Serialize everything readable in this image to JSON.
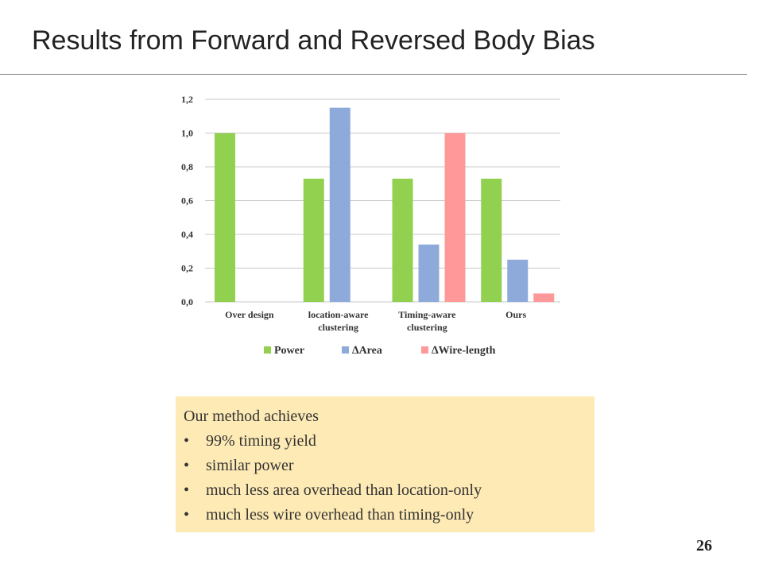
{
  "slide": {
    "title": "Results from Forward and Reversed Body Bias",
    "page_number": "26"
  },
  "chart_data": {
    "type": "bar",
    "categories": [
      [
        "Over design"
      ],
      [
        "location-aware",
        "clustering"
      ],
      [
        "Timing-aware",
        "clustering"
      ],
      [
        "Ours"
      ]
    ],
    "series": [
      {
        "name": "Power",
        "color": "#92d050",
        "values": [
          1.0,
          0.73,
          0.73,
          0.73
        ]
      },
      {
        "name": "∆Area",
        "color": "#8eaadb",
        "values": [
          0,
          1.15,
          0.34,
          0.25
        ]
      },
      {
        "name": "∆Wire-length",
        "color": "#ff9999",
        "values": [
          0,
          0,
          1.0,
          0.05
        ]
      }
    ],
    "yticks": [
      "0,0",
      "0,2",
      "0,4",
      "0,6",
      "0,8",
      "1,0",
      "1,2"
    ],
    "ylim": [
      0,
      1.2
    ],
    "grid": true,
    "legend_position": "bottom"
  },
  "summary": {
    "heading": "Our method achieves",
    "bullet": "•",
    "items": [
      "99% timing yield",
      "similar power",
      "much less area overhead than location-only",
      "much less wire overhead than timing-only"
    ]
  }
}
